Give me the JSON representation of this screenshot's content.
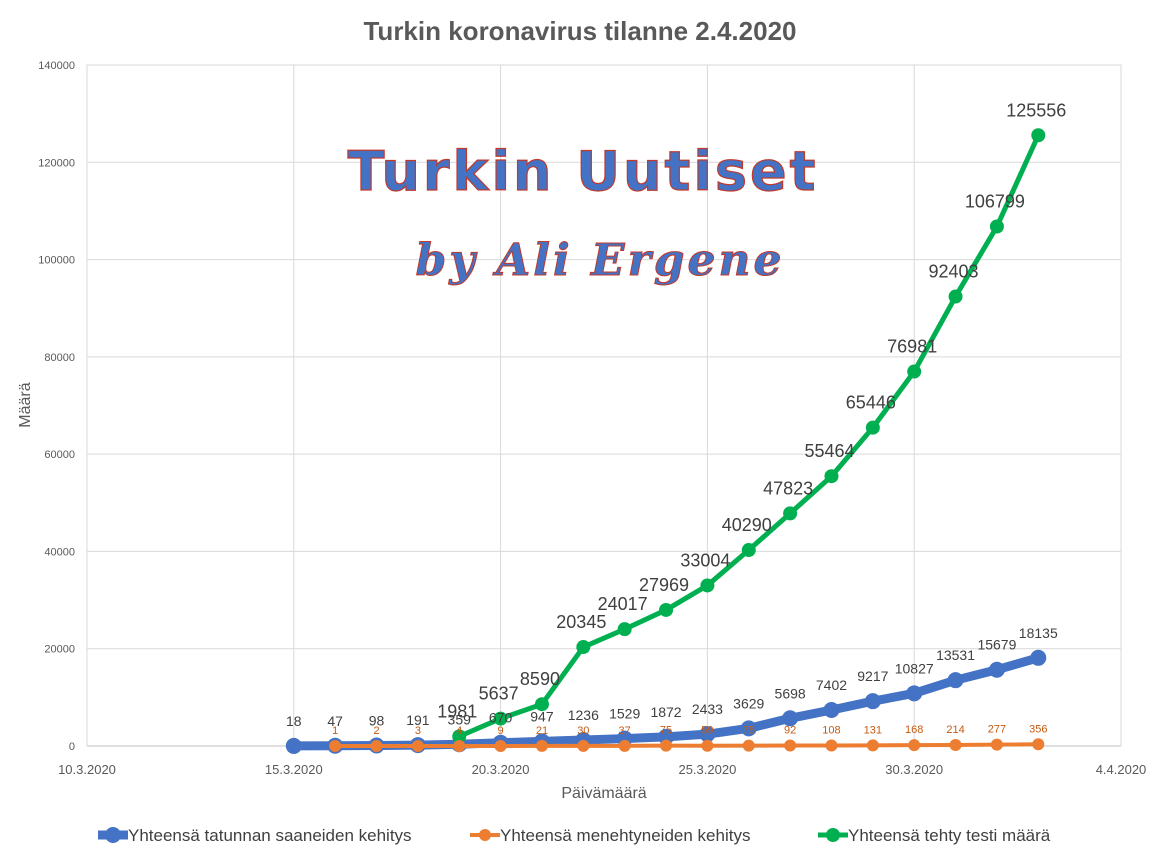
{
  "watermark": {
    "line1": "Turkin Uutiset",
    "line2": "by Ali Ergene"
  },
  "chart_data": {
    "type": "line",
    "title": "Turkin koronavirus tilanne 2.4.2020",
    "xlabel": "Päivämäärä",
    "ylabel": "Määrä",
    "ylim": [
      0,
      140000
    ],
    "yticks": [
      0,
      20000,
      40000,
      60000,
      80000,
      100000,
      120000,
      140000
    ],
    "xlim": [
      "10.3.2020",
      "4.4.2020"
    ],
    "xticks": [
      "10.3.2020",
      "15.3.2020",
      "20.3.2020",
      "25.3.2020",
      "30.3.2020",
      "4.4.2020"
    ],
    "grid": true,
    "legend_position": "bottom",
    "series": [
      {
        "name": "Yhteensä tatunnan saaneiden kehitys",
        "color": "#4472c4",
        "x": [
          "15.3.2020",
          "16.3.2020",
          "17.3.2020",
          "18.3.2020",
          "19.3.2020",
          "20.3.2020",
          "21.3.2020",
          "22.3.2020",
          "23.3.2020",
          "24.3.2020",
          "25.3.2020",
          "26.3.2020",
          "27.3.2020",
          "28.3.2020",
          "29.3.2020",
          "30.3.2020",
          "31.3.2020",
          "1.4.2020",
          "2.4.2020"
        ],
        "values": [
          18,
          47,
          98,
          191,
          359,
          670,
          947,
          1236,
          1529,
          1872,
          2433,
          3629,
          5698,
          7402,
          9217,
          10827,
          13531,
          15679,
          18135
        ]
      },
      {
        "name": "Yhteensä menehtyneiden kehitys",
        "color": "#ed7d31",
        "x": [
          "16.3.2020",
          "17.3.2020",
          "18.3.2020",
          "19.3.2020",
          "20.3.2020",
          "21.3.2020",
          "22.3.2020",
          "23.3.2020",
          "24.3.2020",
          "25.3.2020",
          "26.3.2020",
          "27.3.2020",
          "28.3.2020",
          "29.3.2020",
          "30.3.2020",
          "31.3.2020",
          "1.4.2020",
          "2.4.2020"
        ],
        "values": [
          1,
          2,
          3,
          4,
          9,
          21,
          30,
          37,
          75,
          59,
          75,
          92,
          108,
          131,
          168,
          214,
          277,
          356
        ],
        "labels": [
          "1",
          "2",
          "3",
          "4",
          "9",
          "21",
          "30",
          "37",
          "75",
          "59",
          "75",
          "92",
          "108",
          "131",
          "168",
          "214",
          "277",
          "356"
        ]
      },
      {
        "name": "Yhteensä tehty testi määrä",
        "color": "#00b050",
        "x": [
          "19.3.2020",
          "20.3.2020",
          "21.3.2020",
          "22.3.2020",
          "23.3.2020",
          "24.3.2020",
          "25.3.2020",
          "26.3.2020",
          "27.3.2020",
          "28.3.2020",
          "29.3.2020",
          "30.3.2020",
          "31.3.2020",
          "1.4.2020",
          "2.4.2020"
        ],
        "values": [
          1981,
          5637,
          8590,
          20345,
          24017,
          27969,
          33004,
          40290,
          47823,
          55464,
          65446,
          76981,
          92403,
          106799,
          125556
        ]
      }
    ]
  }
}
